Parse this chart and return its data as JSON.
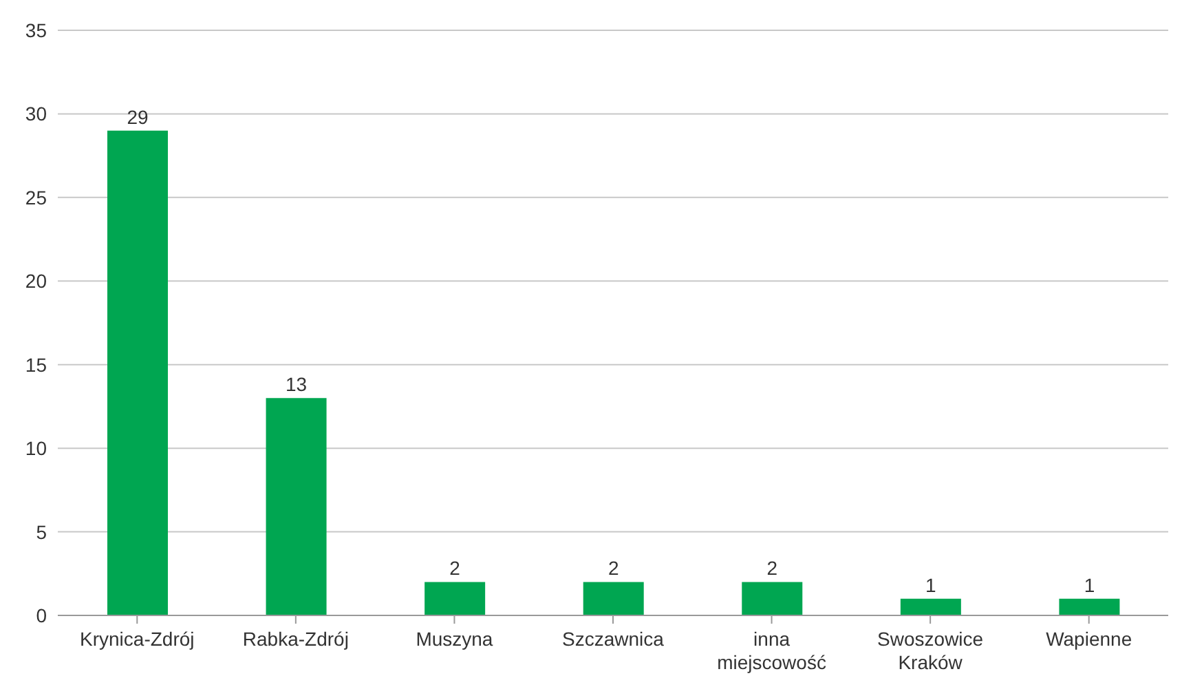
{
  "chart_data": {
    "type": "bar",
    "categories": [
      "Krynica-Zdrój",
      "Rabka-Zdrój",
      "Muszyna",
      "Szczawnica",
      "inna miejscowość",
      "Swoszowice Kraków",
      "Wapienne"
    ],
    "values": [
      29,
      13,
      2,
      2,
      2,
      1,
      1
    ],
    "color": "#00a651",
    "ylim": [
      0,
      35
    ],
    "yticks": [
      0,
      5,
      10,
      15,
      20,
      25,
      30,
      35
    ],
    "grid": "y",
    "data_labels": true
  }
}
